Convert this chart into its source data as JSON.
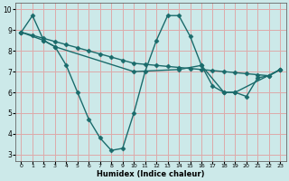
{
  "xlabel": "Humidex (Indice chaleur)",
  "bg_color": "#cce9e9",
  "grid_color": "#ddaaaa",
  "line_color": "#1a6b6b",
  "xlim": [
    -0.5,
    23.5
  ],
  "ylim": [
    2.7,
    10.3
  ],
  "yticks": [
    3,
    4,
    5,
    6,
    7,
    8,
    9,
    10
  ],
  "xticks": [
    0,
    1,
    2,
    3,
    4,
    5,
    6,
    7,
    8,
    9,
    10,
    11,
    12,
    13,
    14,
    15,
    16,
    17,
    18,
    19,
    20,
    21,
    22,
    23
  ],
  "series1_x": [
    0,
    1,
    2,
    3,
    4,
    5,
    6,
    7,
    8,
    9,
    10,
    11,
    12,
    13,
    14,
    15,
    16,
    17,
    18,
    19,
    20,
    21,
    22,
    23
  ],
  "series1_y": [
    8.9,
    9.7,
    8.5,
    8.2,
    7.3,
    6.0,
    4.7,
    3.8,
    3.2,
    3.3,
    5.0,
    7.0,
    8.5,
    9.7,
    9.7,
    8.7,
    7.3,
    6.3,
    6.0,
    6.0,
    5.8,
    6.7,
    6.8,
    7.1
  ],
  "series2_x": [
    0,
    1,
    2,
    3,
    4,
    5,
    6,
    7,
    8,
    9,
    10,
    11,
    12,
    13,
    14,
    15,
    16,
    17,
    18,
    19,
    20,
    21,
    22,
    23
  ],
  "series2_y": [
    8.9,
    8.75,
    8.6,
    8.45,
    8.3,
    8.15,
    8.0,
    7.85,
    7.7,
    7.55,
    7.4,
    7.35,
    7.3,
    7.25,
    7.2,
    7.15,
    7.1,
    7.05,
    7.0,
    6.95,
    6.9,
    6.85,
    6.8,
    7.1
  ],
  "series3_x": [
    0,
    2,
    3,
    10,
    14,
    16,
    18,
    19,
    23
  ],
  "series3_y": [
    8.9,
    8.5,
    8.2,
    7.0,
    7.1,
    7.3,
    6.0,
    6.0,
    7.1
  ],
  "marker": "D",
  "markersize": 2.5,
  "linewidth": 1.0
}
